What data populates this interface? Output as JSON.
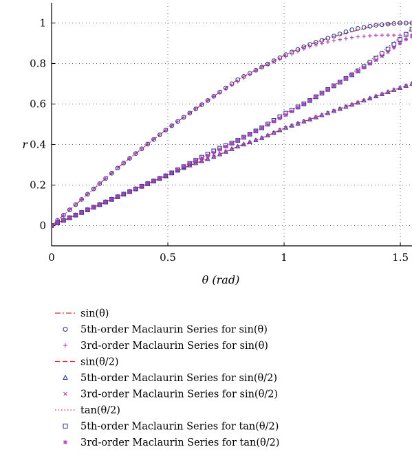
{
  "chart_data": {
    "type": "line",
    "xlabel": "θ (rad)",
    "ylabel": "r",
    "xlim": [
      0,
      1.55
    ],
    "ylim": [
      -0.1,
      1.1
    ],
    "xticks": [
      0,
      0.5,
      1,
      1.5
    ],
    "xtick_labels": [
      "0",
      "0.5",
      "1",
      "1.5"
    ],
    "yticks": [
      0,
      0.2,
      0.4,
      0.6,
      0.8,
      1
    ],
    "ytick_labels": [
      "0",
      "0.2",
      "0.4",
      "0.6",
      "0.8",
      "1"
    ],
    "grid": true,
    "legend_position": "below",
    "x": [
      0,
      0.1,
      0.2,
      0.3,
      0.4,
      0.5,
      0.6,
      0.7,
      0.8,
      0.9,
      1.0,
      1.1,
      1.2,
      1.3,
      1.4,
      1.5,
      1.55
    ],
    "series": [
      {
        "name": "sin(θ)",
        "style": "dashdot",
        "color": "#e0202a",
        "values": [
          0,
          0.1,
          0.2,
          0.3,
          0.39,
          0.48,
          0.56,
          0.64,
          0.72,
          0.78,
          0.84,
          0.89,
          0.93,
          0.96,
          0.99,
          1.0,
          1.0
        ]
      },
      {
        "name": "5th-order Maclaurin Series for sin(θ)",
        "style": "marker",
        "marker": "circle",
        "color": "#2b3a8f",
        "values": [
          0,
          0.1,
          0.2,
          0.3,
          0.39,
          0.48,
          0.56,
          0.64,
          0.72,
          0.78,
          0.84,
          0.89,
          0.93,
          0.97,
          0.99,
          1.0,
          1.0
        ]
      },
      {
        "name": "3rd-order Maclaurin Series for sin(θ)",
        "style": "marker",
        "marker": "plus",
        "color": "#b03cb5",
        "values": [
          0,
          0.1,
          0.2,
          0.3,
          0.39,
          0.48,
          0.56,
          0.64,
          0.71,
          0.78,
          0.83,
          0.88,
          0.91,
          0.93,
          0.94,
          0.94,
          0.93
        ]
      },
      {
        "name": "sin(θ/2)",
        "style": "dashed",
        "color": "#e0202a",
        "values": [
          0,
          0.05,
          0.1,
          0.15,
          0.2,
          0.25,
          0.3,
          0.34,
          0.39,
          0.43,
          0.48,
          0.52,
          0.56,
          0.6,
          0.64,
          0.68,
          0.7
        ]
      },
      {
        "name": "5th-order Maclaurin Series for sin(θ/2)",
        "style": "marker",
        "marker": "triangle",
        "color": "#2b3a8f",
        "values": [
          0,
          0.05,
          0.1,
          0.15,
          0.2,
          0.25,
          0.3,
          0.34,
          0.39,
          0.43,
          0.48,
          0.52,
          0.56,
          0.6,
          0.64,
          0.68,
          0.7
        ]
      },
      {
        "name": "3rd-order Maclaurin Series for sin(θ/2)",
        "style": "marker",
        "marker": "x",
        "color": "#b03cb5",
        "values": [
          0,
          0.05,
          0.1,
          0.15,
          0.2,
          0.25,
          0.3,
          0.34,
          0.39,
          0.43,
          0.48,
          0.52,
          0.56,
          0.6,
          0.64,
          0.68,
          0.7
        ]
      },
      {
        "name": "tan(θ/2)",
        "style": "dotted",
        "color": "#e0202a",
        "values": [
          0,
          0.05,
          0.1,
          0.15,
          0.2,
          0.25,
          0.31,
          0.37,
          0.42,
          0.48,
          0.55,
          0.61,
          0.68,
          0.76,
          0.84,
          0.93,
          0.97
        ]
      },
      {
        "name": "5th-order Maclaurin Series for tan(θ/2)",
        "style": "marker",
        "marker": "square",
        "color": "#2b3a8f",
        "values": [
          0,
          0.05,
          0.1,
          0.15,
          0.2,
          0.25,
          0.31,
          0.37,
          0.42,
          0.48,
          0.55,
          0.61,
          0.68,
          0.75,
          0.83,
          0.92,
          0.97
        ]
      },
      {
        "name": "3rd-order Maclaurin Series for tan(θ/2)",
        "style": "marker",
        "marker": "asterisk",
        "color": "#b03cb5",
        "values": [
          0,
          0.05,
          0.1,
          0.15,
          0.2,
          0.25,
          0.31,
          0.36,
          0.42,
          0.48,
          0.54,
          0.61,
          0.68,
          0.75,
          0.82,
          0.9,
          0.94
        ]
      }
    ]
  }
}
